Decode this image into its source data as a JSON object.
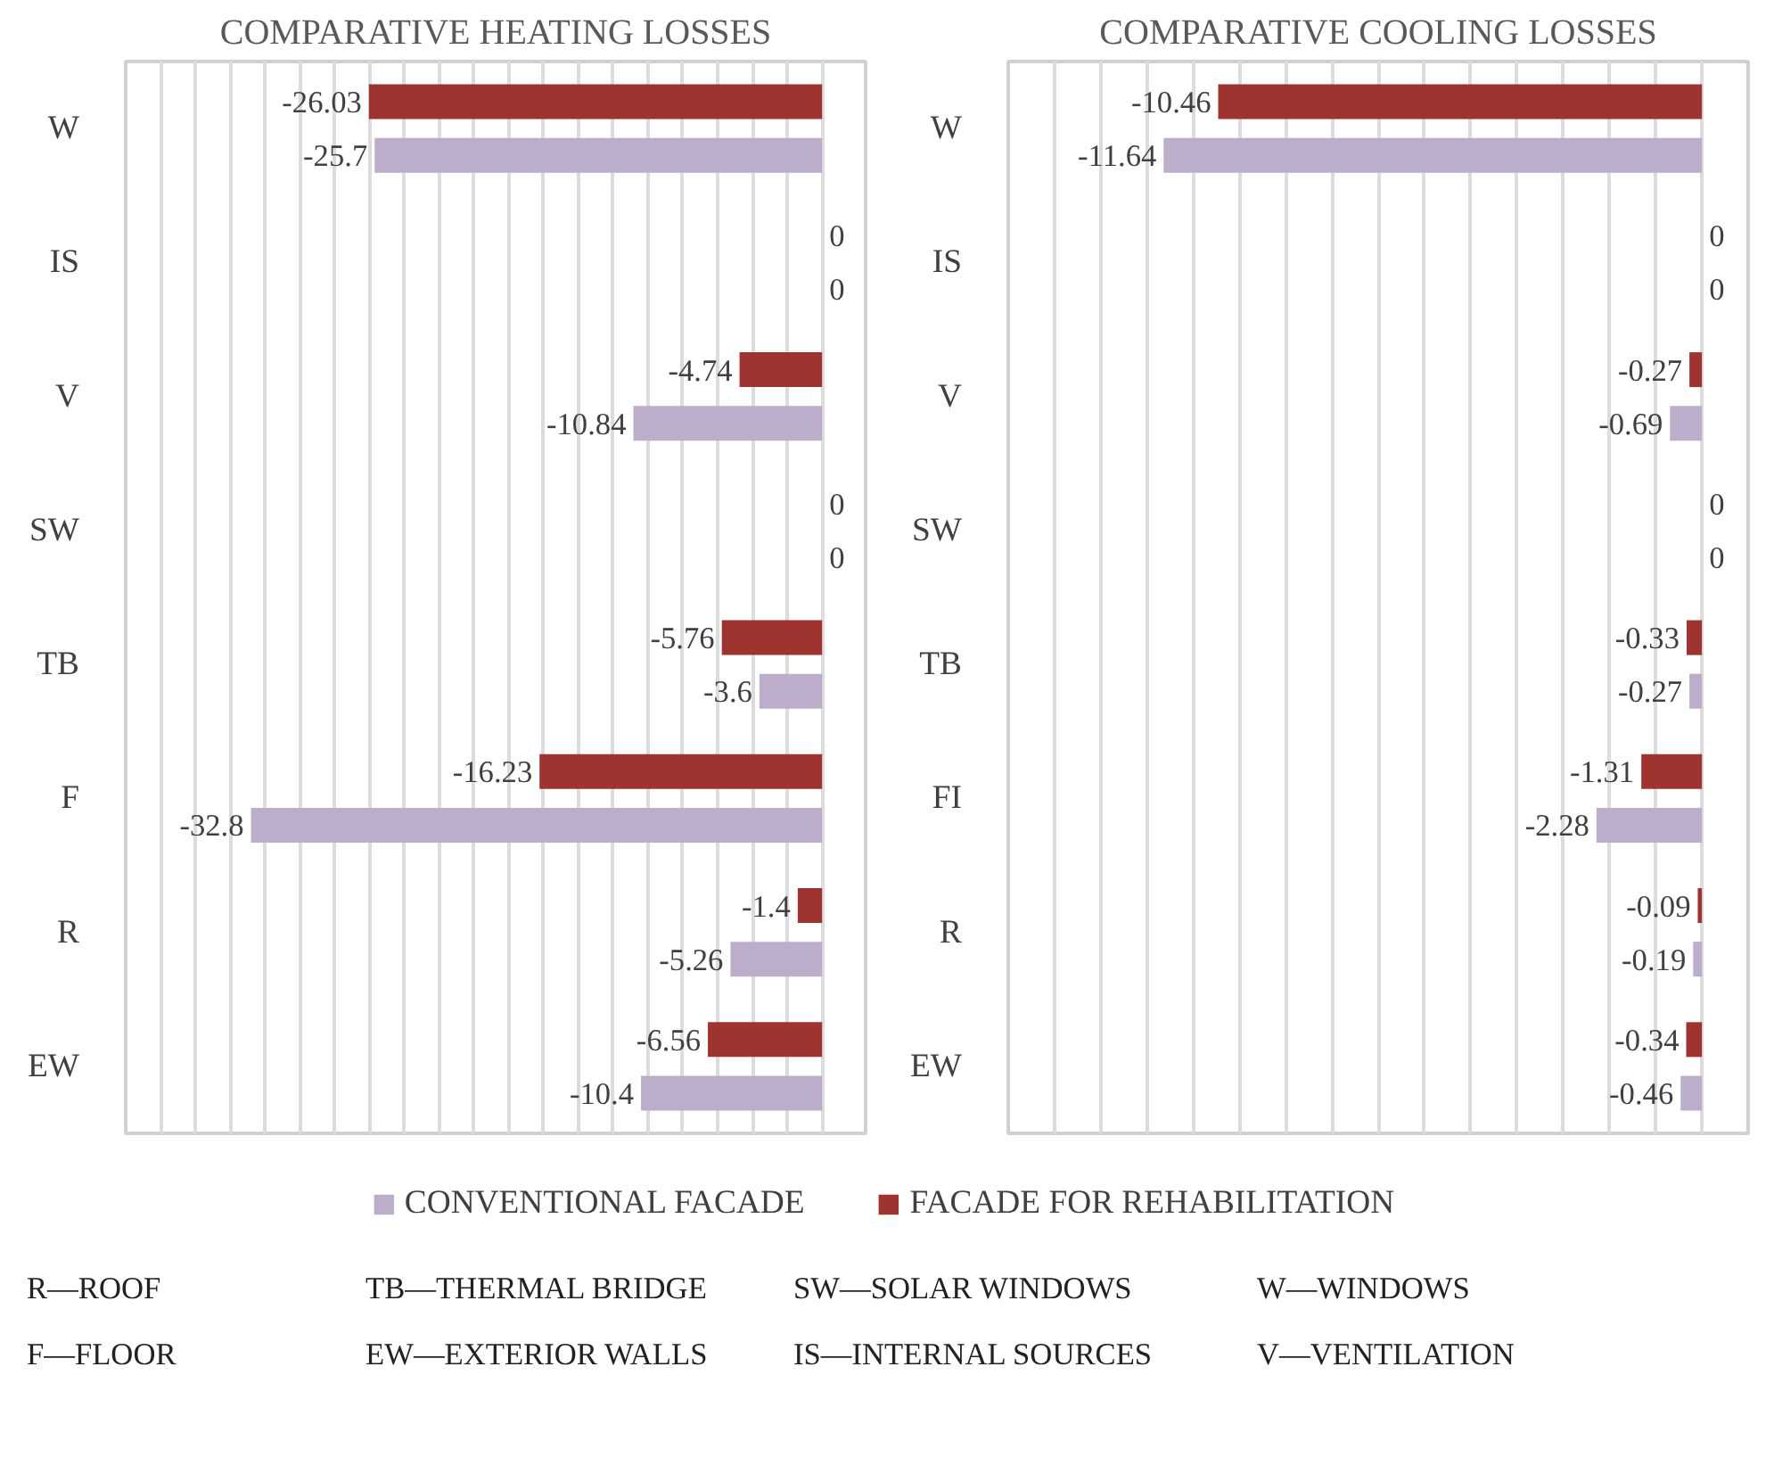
{
  "chart_data": [
    {
      "type": "bar",
      "orientation": "horizontal",
      "title": "COMPARATIVE HEATING LOSSES",
      "categories": [
        "W",
        "IS",
        "V",
        "SW",
        "TB",
        "F",
        "R",
        "EW"
      ],
      "series": [
        {
          "name": "CONVENTIONAL FACADE",
          "color": "#bcaecb",
          "values": [
            -25.7,
            0,
            -10.84,
            0,
            -3.6,
            -32.8,
            -5.26,
            -10.4
          ]
        },
        {
          "name": "FACADE FOR REHABILITATION",
          "color": "#9e3330",
          "values": [
            -26.03,
            0,
            -4.74,
            0,
            -5.76,
            -16.23,
            -1.4,
            -6.56
          ]
        }
      ],
      "xlim": [
        -40,
        2.5
      ],
      "xticks": [
        {
          "value": -40,
          "label": null
        },
        {
          "value": -38,
          "label": null
        },
        {
          "value": -36,
          "label": null
        },
        {
          "value": -34,
          "label": null
        },
        {
          "value": -32,
          "label": null
        },
        {
          "value": -30,
          "label": null
        },
        {
          "value": -28,
          "label": null
        },
        {
          "value": -26,
          "label": null
        },
        {
          "value": -24,
          "label": null
        },
        {
          "value": -22,
          "label": null
        },
        {
          "value": -20,
          "label": null
        },
        {
          "value": -18,
          "label": null
        },
        {
          "value": -16,
          "label": null
        },
        {
          "value": -14,
          "label": null
        },
        {
          "value": -12,
          "label": null
        },
        {
          "value": -10,
          "label": null
        },
        {
          "value": -8,
          "label": null
        },
        {
          "value": -6,
          "label": null
        },
        {
          "value": -4,
          "label": null
        },
        {
          "value": -2,
          "label": null
        },
        {
          "value": 0,
          "label": null
        }
      ],
      "tick_labels": "y",
      "grid": "x",
      "data_labels": true,
      "legend": "bottom",
      "annotations": [
        "R—ROOF",
        "TB—THERMAL BRIDGE",
        "SW—SOLAR WINDOWS",
        "W—WINDOWS",
        "F—FLOOR",
        "EW—EXTERIOR WALLS",
        "IS—INTERNAL SOURCES",
        "V—VENTILATION"
      ]
    },
    {
      "type": "bar",
      "orientation": "horizontal",
      "title": "COMPARATIVE COOLING LOSSES",
      "categories": [
        "W",
        "IS",
        "V",
        "SW",
        "TB",
        "FI",
        "R",
        "EW"
      ],
      "series": [
        {
          "name": "CONVENTIONAL FACADE",
          "color": "#bcaecb",
          "values": [
            -11.64,
            0,
            -0.69,
            0,
            -0.27,
            -2.28,
            -0.19,
            -0.46
          ]
        },
        {
          "name": "FACADE FOR REHABILITATION",
          "color": "#9e3330",
          "values": [
            -10.46,
            0,
            -0.27,
            0,
            -0.33,
            -1.31,
            -0.09,
            -0.34
          ]
        }
      ],
      "xlim": [
        -15,
        1
      ],
      "xticks": [
        {
          "value": -15,
          "label": null
        },
        {
          "value": -14,
          "label": null
        },
        {
          "value": -13,
          "label": null
        },
        {
          "value": -12,
          "label": null
        },
        {
          "value": -11,
          "label": null
        },
        {
          "value": -10,
          "label": null
        },
        {
          "value": -9,
          "label": null
        },
        {
          "value": -8,
          "label": null
        },
        {
          "value": -7,
          "label": null
        },
        {
          "value": -6,
          "label": null
        },
        {
          "value": -5,
          "label": null
        },
        {
          "value": -4,
          "label": null
        },
        {
          "value": -3,
          "label": null
        },
        {
          "value": -2,
          "label": null
        },
        {
          "value": -1,
          "label": null
        },
        {
          "value": 0,
          "label": null
        }
      ],
      "tick_labels": "y",
      "grid": "x",
      "data_labels": true,
      "legend": "bottom"
    }
  ]
}
